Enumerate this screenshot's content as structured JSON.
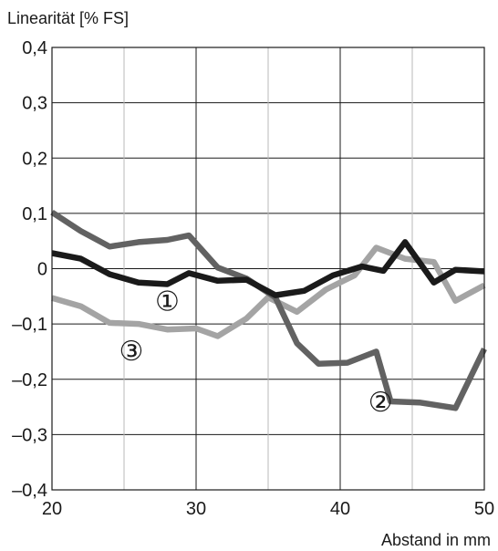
{
  "chart_data": {
    "type": "line",
    "ylabel": "Linearität [% FS]",
    "xlabel": "Abstand in mm",
    "xlim": [
      20,
      50
    ],
    "ylim": [
      -0.4,
      0.4
    ],
    "x_major_ticks": [
      20,
      30,
      40,
      50
    ],
    "x_minor_grid": [
      25,
      35,
      45
    ],
    "x_tick_labels": [
      "20",
      "30",
      "40",
      "50"
    ],
    "y_ticks": [
      0.4,
      0.3,
      0.2,
      0.1,
      0,
      -0.1,
      -0.2,
      -0.3,
      -0.4
    ],
    "y_tick_labels": [
      "0,4",
      "0,3",
      "0,2",
      "0,1",
      "0",
      "–0,1",
      "–0,2",
      "–0,3",
      "–0,4"
    ],
    "grid": true,
    "series": [
      {
        "name": "①",
        "color": "#1a1a1a",
        "points": [
          [
            20,
            0.028
          ],
          [
            22,
            0.018
          ],
          [
            24,
            -0.01
          ],
          [
            26,
            -0.025
          ],
          [
            28,
            -0.028
          ],
          [
            29.5,
            -0.008
          ],
          [
            31.5,
            -0.022
          ],
          [
            33.5,
            -0.02
          ],
          [
            35.5,
            -0.048
          ],
          [
            37.5,
            -0.04
          ],
          [
            39.5,
            -0.012
          ],
          [
            41.5,
            0.004
          ],
          [
            43,
            -0.004
          ],
          [
            44.5,
            0.048
          ],
          [
            46.5,
            -0.025
          ],
          [
            48,
            -0.002
          ],
          [
            50,
            -0.005
          ]
        ]
      },
      {
        "name": "②",
        "color": "#626262",
        "points": [
          [
            20,
            0.102
          ],
          [
            22,
            0.068
          ],
          [
            24,
            0.04
          ],
          [
            26,
            0.048
          ],
          [
            28,
            0.052
          ],
          [
            29.5,
            0.06
          ],
          [
            31.5,
            0.002
          ],
          [
            33.5,
            -0.018
          ],
          [
            35.5,
            -0.052
          ],
          [
            37,
            -0.135
          ],
          [
            38.5,
            -0.172
          ],
          [
            40.5,
            -0.17
          ],
          [
            42.5,
            -0.15
          ],
          [
            43.5,
            -0.24
          ],
          [
            45.5,
            -0.242
          ],
          [
            48,
            -0.252
          ],
          [
            50,
            -0.145
          ]
        ]
      },
      {
        "name": "③",
        "color": "#a4a4a4",
        "points": [
          [
            20,
            -0.053
          ],
          [
            22,
            -0.068
          ],
          [
            24,
            -0.098
          ],
          [
            26,
            -0.1
          ],
          [
            28,
            -0.11
          ],
          [
            30,
            -0.108
          ],
          [
            31.5,
            -0.122
          ],
          [
            33.5,
            -0.09
          ],
          [
            35,
            -0.052
          ],
          [
            37,
            -0.078
          ],
          [
            39,
            -0.038
          ],
          [
            41,
            -0.012
          ],
          [
            42.5,
            0.038
          ],
          [
            44.5,
            0.018
          ],
          [
            46.5,
            0.012
          ],
          [
            48,
            -0.058
          ],
          [
            50,
            -0.03
          ]
        ]
      }
    ],
    "annotations": [
      {
        "text": "①",
        "x": 28,
        "y": -0.058,
        "series": "①"
      },
      {
        "text": "③",
        "x": 25.5,
        "y": -0.148,
        "series": "③"
      },
      {
        "text": "②",
        "x": 42.8,
        "y": -0.24,
        "series": "②"
      }
    ]
  }
}
